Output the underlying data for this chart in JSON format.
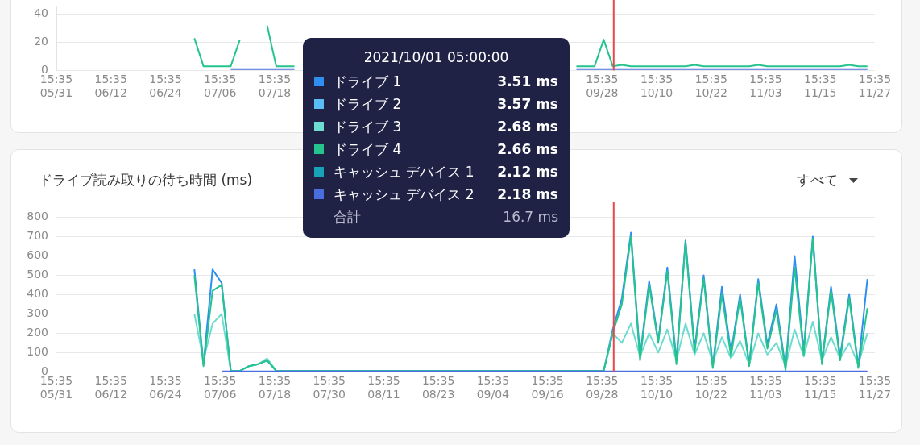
{
  "chart_data": [
    {
      "type": "line",
      "x": [
        "2021-07-01",
        "2021-07-03",
        "2021-07-05",
        "2021-07-07",
        "2021-07-09",
        "2021-07-11",
        "2021-07-13",
        "2021-07-15",
        "2021-07-17",
        "2021-07-19",
        "2021-07-21",
        "2021-07-23",
        "2021-07-25",
        "2021-07-27",
        "2021-07-29",
        "2021-07-31",
        "2021-08-02",
        "2021-08-04",
        "2021-08-06",
        "2021-08-08",
        "2021-08-10",
        "2021-08-12",
        "2021-08-14",
        "2021-08-16",
        "2021-08-18",
        "2021-08-20",
        "2021-08-22",
        "2021-08-24",
        "2021-08-26",
        "2021-08-28",
        "2021-08-30",
        "2021-09-01",
        "2021-09-03",
        "2021-09-05",
        "2021-09-07",
        "2021-09-09",
        "2021-09-11",
        "2021-09-13",
        "2021-09-15",
        "2021-09-17",
        "2021-09-19",
        "2021-09-21",
        "2021-09-23",
        "2021-09-25",
        "2021-09-27",
        "2021-09-29",
        "2021-10-01",
        "2021-10-03",
        "2021-10-05",
        "2021-10-07",
        "2021-10-09",
        "2021-10-11",
        "2021-10-13",
        "2021-10-15",
        "2021-10-17",
        "2021-10-19",
        "2021-10-21",
        "2021-10-23",
        "2021-10-25",
        "2021-10-27",
        "2021-10-29",
        "2021-10-31",
        "2021-11-02",
        "2021-11-04",
        "2021-11-06",
        "2021-11-08",
        "2021-11-10",
        "2021-11-12",
        "2021-11-14",
        "2021-11-16",
        "2021-11-18",
        "2021-11-20",
        "2021-11-22",
        "2021-11-24",
        "2021-11-26"
      ],
      "series": [
        {
          "name": "ドライブ 1",
          "color": "#2e8ff0",
          "values": [
            null,
            null,
            null,
            null,
            null,
            null,
            null,
            null,
            null,
            null,
            null,
            null,
            null,
            null,
            null,
            null,
            null,
            null,
            null,
            null,
            null,
            null,
            null,
            null,
            null,
            null,
            null,
            null,
            null,
            null,
            null,
            null,
            null,
            null,
            null,
            null,
            null,
            null,
            null,
            null,
            null,
            null,
            null,
            null,
            null,
            null,
            null,
            null,
            null,
            null,
            null,
            null,
            null,
            null,
            null,
            null,
            null,
            null,
            null,
            null,
            null,
            null,
            null,
            null,
            null,
            null,
            null,
            null,
            null,
            null,
            null,
            null,
            null,
            null,
            null
          ]
        },
        {
          "name": "ドライブ 2",
          "color": "#5bbcf5",
          "values": [
            null,
            null,
            null,
            null,
            null,
            null,
            null,
            null,
            null,
            null,
            null,
            null,
            null,
            null,
            null,
            null,
            null,
            null,
            null,
            null,
            null,
            null,
            null,
            null,
            null,
            null,
            null,
            null,
            null,
            null,
            null,
            null,
            null,
            null,
            null,
            null,
            null,
            null,
            null,
            null,
            null,
            null,
            null,
            null,
            null,
            null,
            null,
            null,
            null,
            null,
            null,
            null,
            null,
            null,
            null,
            null,
            null,
            null,
            null,
            null,
            null,
            null,
            null,
            null,
            null,
            null,
            null,
            null,
            null,
            null,
            null,
            null,
            null,
            null,
            null
          ]
        },
        {
          "name": "ドライブ 3",
          "color": "#6ddbd0",
          "values": [
            null,
            null,
            null,
            null,
            null,
            null,
            null,
            null,
            null,
            null,
            null,
            null,
            null,
            null,
            null,
            null,
            null,
            null,
            null,
            null,
            null,
            null,
            null,
            null,
            null,
            null,
            null,
            null,
            null,
            null,
            null,
            null,
            null,
            null,
            null,
            null,
            null,
            null,
            null,
            null,
            null,
            null,
            null,
            null,
            null,
            null,
            null,
            null,
            null,
            null,
            null,
            null,
            null,
            null,
            null,
            null,
            null,
            null,
            null,
            null,
            null,
            null,
            null,
            null,
            null,
            null,
            null,
            null,
            null,
            null,
            null,
            null,
            null,
            null,
            null
          ]
        },
        {
          "name": "ドライブ 4",
          "color": "#25c48e",
          "values": [
            23,
            3,
            3,
            3,
            3,
            22,
            null,
            null,
            32,
            3,
            3,
            3,
            null,
            null,
            null,
            null,
            null,
            null,
            null,
            null,
            null,
            null,
            null,
            null,
            null,
            null,
            null,
            null,
            null,
            null,
            null,
            null,
            null,
            null,
            null,
            null,
            null,
            null,
            null,
            null,
            null,
            null,
            3,
            3,
            3,
            22,
            3,
            4,
            3,
            3,
            3,
            3,
            3,
            3,
            3,
            4,
            3,
            3,
            3,
            3,
            3,
            3,
            4,
            3,
            3,
            3,
            3,
            3,
            3,
            3,
            3,
            3,
            4,
            3,
            3
          ]
        },
        {
          "name": "キャッシュ デバイス 1",
          "color": "#17a2b8",
          "values": [
            null,
            null,
            null,
            null,
            null,
            null,
            null,
            null,
            null,
            null,
            null,
            null,
            null,
            null,
            null,
            null,
            null,
            null,
            null,
            null,
            null,
            null,
            null,
            null,
            null,
            null,
            null,
            null,
            null,
            null,
            null,
            null,
            null,
            null,
            null,
            null,
            null,
            null,
            null,
            null,
            null,
            null,
            null,
            null,
            null,
            null,
            null,
            null,
            null,
            null,
            null,
            null,
            null,
            null,
            null,
            null,
            null,
            null,
            null,
            null,
            null,
            null,
            null,
            null,
            null,
            null,
            null,
            null,
            null,
            null,
            null,
            null,
            null,
            null,
            null
          ]
        },
        {
          "name": "キャッシュ デバイス 2",
          "color": "#4a6ee0",
          "values": [
            null,
            null,
            null,
            null,
            1,
            1,
            1,
            1,
            1,
            1,
            1,
            1,
            null,
            null,
            null,
            null,
            null,
            null,
            null,
            null,
            null,
            null,
            null,
            null,
            null,
            null,
            null,
            null,
            null,
            null,
            null,
            null,
            null,
            null,
            null,
            null,
            null,
            null,
            null,
            null,
            null,
            null,
            1,
            1,
            1,
            1,
            1,
            1,
            1,
            1,
            1,
            1,
            1,
            1,
            1,
            1,
            1,
            1,
            1,
            1,
            1,
            1,
            1,
            1,
            1,
            1,
            1,
            1,
            1,
            1,
            1,
            1,
            1,
            1,
            1
          ]
        }
      ],
      "xlim": [
        "2021-05-31T15:35",
        "2021-11-27T15:35"
      ],
      "xticks": [
        {
          "value": "2021-05-31T15:35",
          "label": "15:35\n05/31"
        },
        {
          "value": "2021-06-12T15:35",
          "label": "15:35\n06/12"
        },
        {
          "value": "2021-06-24T15:35",
          "label": "15:35\n06/24"
        },
        {
          "value": "2021-07-06T15:35",
          "label": "15:35\n07/06"
        },
        {
          "value": "2021-07-18T15:35",
          "label": "15:35\n07/18"
        },
        {
          "value": "2021-09-28T15:35",
          "label": "15:35\n09/28"
        },
        {
          "value": "2021-10-10T15:35",
          "label": "15:35\n10/10"
        },
        {
          "value": "2021-10-22T15:35",
          "label": "15:35\n10/22"
        },
        {
          "value": "2021-11-03T15:35",
          "label": "15:35\n11/03"
        },
        {
          "value": "2021-11-15T15:35",
          "label": "15:35\n11/15"
        },
        {
          "value": "2021-11-27T15:35",
          "label": "15:35\n11/27"
        }
      ],
      "ylim": [
        0,
        46
      ],
      "yticks": [
        0,
        20,
        40
      ],
      "grid": "y",
      "marker": "none",
      "legend": "bottom left",
      "ref_lines": [
        {
          "axis": "x",
          "value": "2021-10-01T05:00",
          "color": "#e8474c"
        }
      ],
      "annotations": [
        "2021/10/01 05:00:00",
        "3.51 ms",
        "3.57 ms",
        "2.68 ms",
        "2.66 ms",
        "2.12 ms",
        "2.18 ms",
        "合計",
        "16.7 ms"
      ]
    },
    {
      "type": "line",
      "title": "ドライブ読み取りの待ち時間 (ms)",
      "x": [
        "2021-07-01",
        "2021-07-03",
        "2021-07-05",
        "2021-07-07",
        "2021-07-09",
        "2021-07-11",
        "2021-07-13",
        "2021-07-15",
        "2021-07-17",
        "2021-07-19",
        "2021-07-21",
        "2021-07-23",
        "2021-07-25",
        "2021-07-27",
        "2021-07-29",
        "2021-07-31",
        "2021-08-02",
        "2021-08-04",
        "2021-08-06",
        "2021-08-08",
        "2021-08-10",
        "2021-08-12",
        "2021-08-14",
        "2021-08-16",
        "2021-08-18",
        "2021-08-20",
        "2021-08-22",
        "2021-08-24",
        "2021-08-26",
        "2021-08-28",
        "2021-08-30",
        "2021-09-01",
        "2021-09-03",
        "2021-09-05",
        "2021-09-07",
        "2021-09-09",
        "2021-09-11",
        "2021-09-13",
        "2021-09-15",
        "2021-09-17",
        "2021-09-19",
        "2021-09-21",
        "2021-09-23",
        "2021-09-25",
        "2021-09-27",
        "2021-09-29",
        "2021-10-01",
        "2021-10-03",
        "2021-10-05",
        "2021-10-07",
        "2021-10-09",
        "2021-10-11",
        "2021-10-13",
        "2021-10-15",
        "2021-10-17",
        "2021-10-19",
        "2021-10-21",
        "2021-10-23",
        "2021-10-25",
        "2021-10-27",
        "2021-10-29",
        "2021-10-31",
        "2021-11-02",
        "2021-11-04",
        "2021-11-06",
        "2021-11-08",
        "2021-11-10",
        "2021-11-12",
        "2021-11-14",
        "2021-11-16",
        "2021-11-18",
        "2021-11-20",
        "2021-11-22",
        "2021-11-24",
        "2021-11-26"
      ],
      "series": [
        {
          "color": "#2e8ff0",
          "values": [
            530,
            40,
            530,
            460,
            5,
            5,
            30,
            40,
            60,
            5,
            5,
            5,
            5,
            5,
            5,
            5,
            5,
            5,
            5,
            5,
            5,
            5,
            5,
            5,
            5,
            5,
            5,
            5,
            5,
            5,
            5,
            5,
            5,
            5,
            5,
            5,
            5,
            5,
            5,
            5,
            5,
            5,
            5,
            5,
            5,
            5,
            220,
            380,
            720,
            80,
            470,
            160,
            540,
            60,
            680,
            120,
            500,
            30,
            440,
            100,
            400,
            40,
            480,
            140,
            350,
            20,
            600,
            110,
            700,
            50,
            440,
            80,
            400,
            30,
            480
          ]
        },
        {
          "color": "#6ddbd0",
          "values": [
            300,
            60,
            250,
            300,
            5,
            5,
            30,
            40,
            70,
            5,
            5,
            5,
            5,
            5,
            5,
            5,
            5,
            5,
            5,
            5,
            5,
            5,
            5,
            5,
            5,
            5,
            5,
            5,
            5,
            5,
            5,
            5,
            5,
            5,
            5,
            5,
            5,
            5,
            5,
            5,
            5,
            5,
            5,
            5,
            5,
            5,
            200,
            150,
            250,
            80,
            200,
            100,
            220,
            60,
            250,
            90,
            200,
            50,
            180,
            70,
            160,
            40,
            200,
            90,
            150,
            30,
            220,
            80,
            260,
            60,
            180,
            70,
            150,
            40,
            200
          ]
        },
        {
          "color": "#25c48e",
          "values": [
            500,
            30,
            420,
            450,
            5,
            5,
            30,
            40,
            60,
            5,
            5,
            5,
            5,
            5,
            5,
            5,
            5,
            5,
            5,
            5,
            5,
            5,
            5,
            5,
            5,
            5,
            5,
            5,
            5,
            5,
            5,
            5,
            5,
            5,
            5,
            5,
            5,
            5,
            5,
            5,
            5,
            5,
            5,
            5,
            5,
            5,
            200,
            350,
            700,
            60,
            450,
            150,
            520,
            40,
            670,
            100,
            480,
            20,
            400,
            80,
            380,
            30,
            460,
            120,
            320,
            10,
            540,
            90,
            690,
            40,
            420,
            60,
            380,
            20,
            330
          ]
        },
        {
          "color": "#4a6ee0",
          "values": [
            null,
            null,
            null,
            3,
            3,
            3,
            3,
            3,
            3,
            3,
            3,
            3,
            3,
            3,
            3,
            3,
            3,
            3,
            3,
            3,
            3,
            3,
            3,
            3,
            3,
            3,
            3,
            3,
            3,
            3,
            3,
            3,
            3,
            3,
            3,
            3,
            3,
            3,
            3,
            3,
            3,
            3,
            3,
            3,
            3,
            3,
            3,
            3,
            3,
            3,
            3,
            3,
            3,
            3,
            3,
            3,
            3,
            3,
            3,
            3,
            3,
            3,
            3,
            3,
            3,
            3,
            3,
            3,
            3,
            3,
            3,
            3,
            3,
            3,
            3
          ]
        }
      ],
      "xlim": [
        "2021-05-31T15:35",
        "2021-11-27T15:35"
      ],
      "xticks": [
        {
          "value": "2021-05-31T15:35",
          "label": "15:35\n05/31"
        },
        {
          "value": "2021-06-12T15:35",
          "label": "15:35\n06/12"
        },
        {
          "value": "2021-06-24T15:35",
          "label": "15:35\n06/24"
        },
        {
          "value": "2021-07-06T15:35",
          "label": "15:35\n07/06"
        },
        {
          "value": "2021-07-18T15:35",
          "label": "15:35\n07/18"
        },
        {
          "value": "2021-07-30T15:35",
          "label": "15:35\n07/30"
        },
        {
          "value": "2021-08-11T15:35",
          "label": "15:35\n08/11"
        },
        {
          "value": "2021-08-23T15:35",
          "label": "15:35\n08/23"
        },
        {
          "value": "2021-09-04T15:35",
          "label": "15:35\n09/04"
        },
        {
          "value": "2021-09-16T15:35",
          "label": "15:35\n09/16"
        },
        {
          "value": "2021-09-28T15:35",
          "label": "15:35\n09/28"
        },
        {
          "value": "2021-10-10T15:35",
          "label": "15:35\n10/10"
        },
        {
          "value": "2021-10-22T15:35",
          "label": "15:35\n10/22"
        },
        {
          "value": "2021-11-03T15:35",
          "label": "15:35\n11/03"
        },
        {
          "value": "2021-11-15T15:35",
          "label": "15:35\n11/15"
        },
        {
          "value": "2021-11-27T15:35",
          "label": "15:35\n11/27"
        }
      ],
      "ylim": [
        0,
        800
      ],
      "yticks": [
        0,
        100,
        200,
        300,
        400,
        500,
        600,
        700,
        800
      ],
      "grid": "y",
      "marker": "none",
      "ref_lines": [
        {
          "axis": "x",
          "value": "2021-10-01T05:00",
          "color": "#e8474c"
        }
      ],
      "annotations": [
        "すべて"
      ]
    }
  ]
}
